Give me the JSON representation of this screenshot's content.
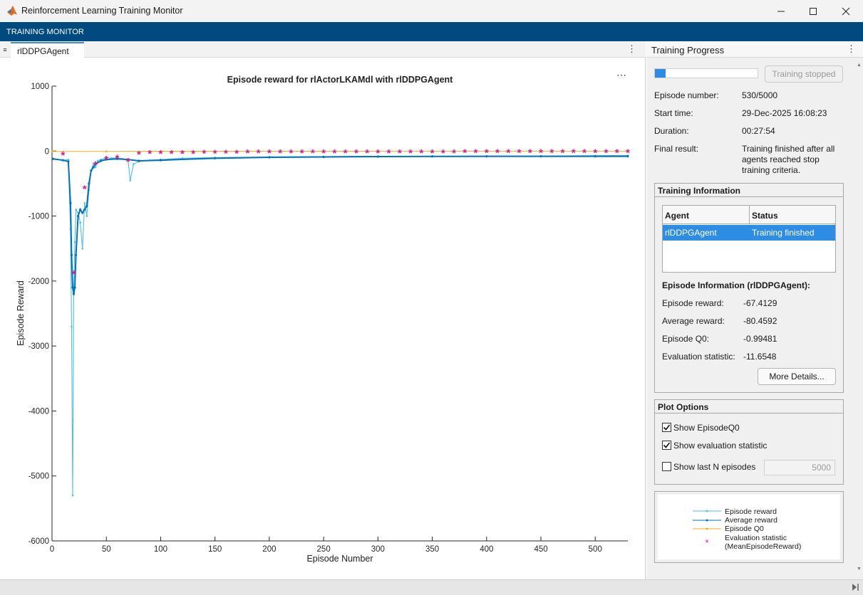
{
  "window": {
    "title": "Reinforcement Learning Training Monitor",
    "minimize_icon": "minimize-icon",
    "maximize_icon": "maximize-icon",
    "close_icon": "close-icon",
    "app_icon": "matlab-logo-icon"
  },
  "toolstrip": {
    "tab_label": "TRAINING MONITOR"
  },
  "document": {
    "tab_label": "rlDDPGAgent"
  },
  "progress_panel": {
    "title": "Training Progress",
    "progress_fraction": 0.106,
    "stop_button_label": "Training stopped",
    "fields": [
      {
        "label": "Episode number:",
        "value": "530/5000"
      },
      {
        "label": "Start time:",
        "value": "29-Dec-2025 16:08:23"
      },
      {
        "label": "Duration:",
        "value": "00:27:54"
      },
      {
        "label": "Final result:",
        "value": "Training finished after all agents reached stop training criteria."
      }
    ],
    "final_result_lines": [
      "Training finished after all",
      "agents reached stop",
      "training criteria."
    ]
  },
  "training_info": {
    "title": "Training Information",
    "table_headers": [
      "Agent",
      "Status"
    ],
    "rows": [
      {
        "agent": "rlDDPGAgent",
        "status": "Training finished"
      }
    ],
    "episode_info_title": "Episode Information (rlDDPGAgent):",
    "episode_fields": [
      {
        "label": "Episode reward:",
        "value": "-67.4129"
      },
      {
        "label": "Average reward:",
        "value": "-80.4592"
      },
      {
        "label": "Episode Q0:",
        "value": "-0.99481"
      },
      {
        "label": "Evaluation statistic:",
        "value": "-11.6548"
      }
    ],
    "more_details_label": "More Details..."
  },
  "plot_options": {
    "title": "Plot Options",
    "show_q0": {
      "label": "Show EpisodeQ0",
      "checked": true
    },
    "show_eval": {
      "label": "Show evaluation statistic",
      "checked": true
    },
    "show_last_n": {
      "label": "Show last N episodes",
      "checked": false,
      "value": "5000"
    }
  },
  "legend": {
    "items": [
      "Episode reward",
      "Average reward",
      "Episode Q0",
      "Evaluation statistic",
      "(MeanEpisodeReward)"
    ]
  },
  "colors": {
    "episode_reward": "#4dbeee",
    "average_reward": "#0072bd",
    "episode_q0": "#edb120",
    "evaluation": "#e0148c",
    "accent": "#004a80",
    "selection": "#2d8ce3"
  },
  "chart_data": {
    "type": "line",
    "title": "Episode reward for rlActorLKAMdl with rlDDPGAgent",
    "xlabel": "Episode Number",
    "ylabel": "Episode Reward",
    "xlim": [
      0,
      530
    ],
    "ylim": [
      -6000,
      1000
    ],
    "xticks": [
      0,
      50,
      100,
      150,
      200,
      250,
      300,
      350,
      400,
      450,
      500
    ],
    "yticks": [
      1000,
      0,
      -1000,
      -2000,
      -3000,
      -4000,
      -5000,
      -6000
    ],
    "grid": false,
    "series": [
      {
        "name": "Episode reward",
        "x": [
          1,
          10,
          15,
          17,
          18,
          19,
          20,
          21,
          22,
          24,
          26,
          28,
          30,
          32,
          34,
          36,
          38,
          40,
          42,
          45,
          50,
          55,
          60,
          65,
          70,
          72,
          75,
          80,
          90,
          100,
          120,
          150,
          200,
          250,
          300,
          350,
          400,
          450,
          500,
          530
        ],
        "y": [
          -120,
          -140,
          -130,
          -1200,
          -2700,
          -5300,
          -2100,
          -1400,
          -900,
          -950,
          -1100,
          -1500,
          -800,
          -1000,
          -600,
          -300,
          -200,
          -250,
          -150,
          -130,
          -100,
          -110,
          -100,
          -120,
          -150,
          -450,
          -200,
          -160,
          -140,
          -130,
          -110,
          -100,
          -90,
          -85,
          -80,
          -80,
          -80,
          -75,
          -70,
          -67
        ]
      },
      {
        "name": "Average reward",
        "x": [
          1,
          10,
          15,
          17,
          18,
          19,
          20,
          21,
          22,
          24,
          26,
          28,
          30,
          32,
          34,
          36,
          38,
          40,
          45,
          50,
          60,
          70,
          80,
          100,
          150,
          200,
          250,
          300,
          350,
          400,
          450,
          500,
          530
        ],
        "y": [
          -120,
          -140,
          -160,
          -800,
          -1600,
          -2100,
          -2200,
          -2100,
          -1600,
          -1000,
          -900,
          -950,
          -900,
          -850,
          -500,
          -300,
          -250,
          -200,
          -150,
          -130,
          -120,
          -130,
          -150,
          -140,
          -110,
          -95,
          -90,
          -85,
          -82,
          -80,
          -80,
          -80,
          -80
        ]
      },
      {
        "name": "Episode Q0",
        "x": [
          0,
          50,
          100,
          200,
          300,
          400,
          530
        ],
        "y": [
          -5,
          -5,
          -3,
          -2,
          -1,
          -1,
          -1
        ]
      },
      {
        "name": "Evaluation statistic",
        "x": [
          10,
          20,
          30,
          40,
          50,
          60,
          70,
          80,
          90,
          100,
          110,
          120,
          130,
          140,
          150,
          160,
          170,
          180,
          190,
          200,
          210,
          220,
          230,
          240,
          250,
          260,
          270,
          280,
          290,
          300,
          310,
          320,
          330,
          340,
          350,
          360,
          370,
          380,
          390,
          400,
          410,
          420,
          430,
          440,
          450,
          460,
          470,
          480,
          490,
          500,
          510,
          520,
          530
        ],
        "y": [
          -50,
          -1880,
          -570,
          -200,
          -120,
          -100,
          -150,
          -40,
          -30,
          -30,
          -30,
          -30,
          -30,
          -25,
          -25,
          -25,
          -25,
          -20,
          -20,
          -20,
          -20,
          -20,
          -20,
          -20,
          -20,
          -20,
          -20,
          -20,
          -20,
          -20,
          -20,
          -20,
          -20,
          -20,
          -20,
          -20,
          -20,
          -15,
          -15,
          -15,
          -15,
          -15,
          -15,
          -15,
          -15,
          -15,
          -15,
          -15,
          -15,
          -15,
          -15,
          -15,
          -12
        ]
      }
    ]
  }
}
